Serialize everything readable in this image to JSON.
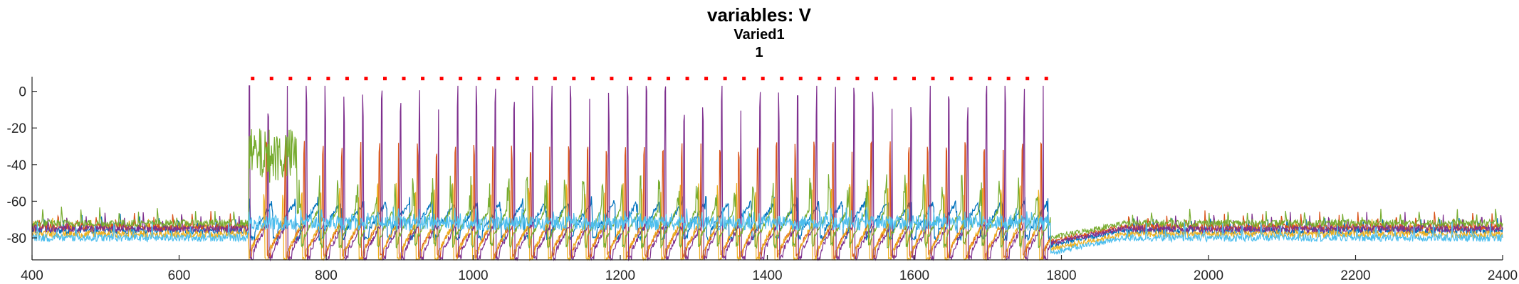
{
  "chart_data": {
    "type": "line",
    "title": "variables: V",
    "subtitle_lines": [
      "Varied1",
      "1"
    ],
    "xlabel": "",
    "ylabel": "",
    "xlim": [
      400,
      2400
    ],
    "ylim": [
      -92,
      8
    ],
    "x_ticks": [
      400,
      600,
      800,
      1000,
      1200,
      1400,
      1600,
      1800,
      2000,
      2200,
      2400
    ],
    "y_ticks": [
      0,
      -20,
      -40,
      -60,
      -80
    ],
    "grid": false,
    "legend": "none",
    "stimulus_marker": {
      "color": "#ff0000",
      "y": 7,
      "x_start": 700,
      "x_end": 1780,
      "step": 25.7
    },
    "series": [
      {
        "color": "#0072bd",
        "baseline": -76,
        "burst_baseline": -76,
        "spike_peak": -62,
        "period": 31,
        "phase": 0,
        "sustained": false
      },
      {
        "color": "#d95319",
        "baseline": -74,
        "burst_baseline": -86,
        "spike_peak": -32,
        "period": 25.7,
        "phase": 3,
        "sustained": false
      },
      {
        "color": "#edb120",
        "baseline": -78,
        "burst_baseline": -88,
        "spike_peak": -55,
        "period": 25.7,
        "phase": 6,
        "sustained": false
      },
      {
        "color": "#7e2f8e",
        "baseline": -75,
        "burst_baseline": -87,
        "spike_peak": -5,
        "period": 25.7,
        "phase": 0,
        "sustained": false
      },
      {
        "color": "#77ac30",
        "baseline": -72,
        "burst_baseline": -80,
        "spike_peak": -48,
        "period": 25.7,
        "phase": 9,
        "sustained": true
      },
      {
        "color": "#4dbeee",
        "baseline": -80,
        "burst_baseline": -72,
        "spike_peak": -66,
        "period": 7,
        "phase": 0,
        "sustained": false
      }
    ],
    "burst_window": [
      695,
      1785
    ],
    "sustained_window": [
      695,
      760
    ],
    "sustained_level": -35
  }
}
